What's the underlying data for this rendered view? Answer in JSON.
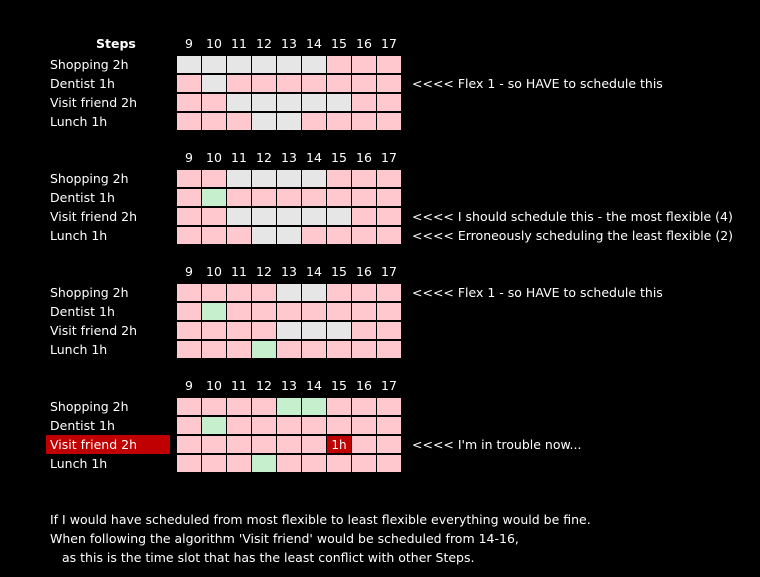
{
  "colors": {
    "background": "#000000",
    "conflict": "#ffc7ce",
    "available": "#e7e6e6",
    "scheduled": "#c6efce",
    "trouble": "#c00000",
    "text": "#ffffff"
  },
  "steps_header": "Steps",
  "hours": [
    "9",
    "10",
    "11",
    "12",
    "13",
    "14",
    "15",
    "16",
    "17"
  ],
  "blocks": [
    {
      "show_steps": true,
      "rows": [
        {
          "label": "Shopping 2h",
          "cells": [
            "a",
            "a",
            "a",
            "a",
            "a",
            "a",
            "c",
            "c",
            "c"
          ],
          "note": ""
        },
        {
          "label": "Dentist 1h",
          "cells": [
            "c",
            "a",
            "c",
            "c",
            "c",
            "c",
            "c",
            "c",
            "c"
          ],
          "note": "<<<<  Flex 1 - so HAVE to schedule this"
        },
        {
          "label": "Visit friend 2h",
          "cells": [
            "c",
            "c",
            "a",
            "a",
            "a",
            "a",
            "a",
            "c",
            "c"
          ],
          "note": ""
        },
        {
          "label": "Lunch 1h",
          "cells": [
            "c",
            "c",
            "c",
            "a",
            "a",
            "c",
            "c",
            "c",
            "c"
          ],
          "note": ""
        }
      ]
    },
    {
      "show_steps": false,
      "rows": [
        {
          "label": "Shopping 2h",
          "cells": [
            "c",
            "c",
            "a",
            "a",
            "a",
            "a",
            "c",
            "c",
            "c"
          ],
          "note": ""
        },
        {
          "label": "Dentist 1h",
          "cells": [
            "c",
            "s",
            "c",
            "c",
            "c",
            "c",
            "c",
            "c",
            "c"
          ],
          "note": ""
        },
        {
          "label": "Visit friend 2h",
          "cells": [
            "c",
            "c",
            "a",
            "a",
            "a",
            "a",
            "a",
            "c",
            "c"
          ],
          "note": "<<<<  I should schedule this - the most flexible (4)"
        },
        {
          "label": "Lunch 1h",
          "cells": [
            "c",
            "c",
            "c",
            "a",
            "a",
            "c",
            "c",
            "c",
            "c"
          ],
          "note": "<<<<  Erroneously scheduling the least flexible (2)"
        }
      ]
    },
    {
      "show_steps": false,
      "rows": [
        {
          "label": "Shopping 2h",
          "cells": [
            "c",
            "c",
            "c",
            "c",
            "a",
            "a",
            "c",
            "c",
            "c"
          ],
          "note": "<<<<  Flex 1 - so HAVE to schedule this"
        },
        {
          "label": "Dentist 1h",
          "cells": [
            "c",
            "s",
            "c",
            "c",
            "c",
            "c",
            "c",
            "c",
            "c"
          ],
          "note": ""
        },
        {
          "label": "Visit friend 2h",
          "cells": [
            "c",
            "c",
            "c",
            "c",
            "a",
            "a",
            "a",
            "c",
            "c"
          ],
          "note": ""
        },
        {
          "label": "Lunch 1h",
          "cells": [
            "c",
            "c",
            "c",
            "s",
            "c",
            "c",
            "c",
            "c",
            "c"
          ],
          "note": ""
        }
      ]
    },
    {
      "show_steps": false,
      "rows": [
        {
          "label": "Shopping 2h",
          "cells": [
            "c",
            "c",
            "c",
            "c",
            "s",
            "s",
            "c",
            "c",
            "c"
          ],
          "note": ""
        },
        {
          "label": "Dentist 1h",
          "cells": [
            "c",
            "s",
            "c",
            "c",
            "c",
            "c",
            "c",
            "c",
            "c"
          ],
          "note": ""
        },
        {
          "label": "Visit friend 2h",
          "highlight": true,
          "cells": [
            "c",
            "c",
            "c",
            "c",
            "c",
            "c",
            "t",
            "c",
            "c"
          ],
          "cell_text": {
            "6": "1h"
          },
          "note": "<<<<  I'm in trouble now..."
        },
        {
          "label": "Lunch 1h",
          "cells": [
            "c",
            "c",
            "c",
            "s",
            "c",
            "c",
            "c",
            "c",
            "c"
          ],
          "note": ""
        }
      ]
    }
  ],
  "footer": [
    "If I would have scheduled from most flexible to least flexible everything would be fine.",
    "When following the algorithm 'Visit friend' would be scheduled from 14-16,",
    "as this is the time slot that has the least conflict with other Steps."
  ]
}
